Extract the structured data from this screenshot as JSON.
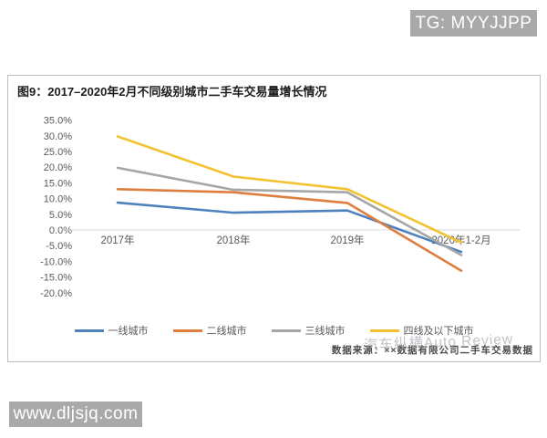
{
  "overlays": {
    "telegram_badge": "TG: MYYJJPP",
    "site_badge": "www.dljsjq.com",
    "watermark": "汽车纵横Auto Review"
  },
  "figure": {
    "title": "图9：2017–2020年2月不同级别城市二手车交易量增长情况",
    "source_note": "数据来源：××数据有限公司二手车交易数据"
  },
  "chart_data": {
    "type": "line",
    "title": "图9：2017–2020年2月不同级别城市二手车交易量增长情况",
    "categories": [
      "2017年",
      "2018年",
      "2019年",
      "2020年1-2月"
    ],
    "series": [
      {
        "name": "一线城市",
        "color": "#4e81bd",
        "values": [
          8.7,
          5.5,
          6.2,
          -7.0
        ]
      },
      {
        "name": "二线城市",
        "color": "#de7e3e",
        "values": [
          13.0,
          12.0,
          8.6,
          -13.0
        ]
      },
      {
        "name": "三线城市",
        "color": "#a6a6a6",
        "values": [
          19.8,
          12.8,
          12.0,
          -8.0
        ]
      },
      {
        "name": "四线及以下城市",
        "color": "#f2c230",
        "values": [
          29.8,
          17.0,
          13.0,
          -4.0
        ]
      }
    ],
    "ylim": [
      -20,
      35
    ],
    "ytick_step": 5,
    "ytick_format": "0.0%",
    "grid": "zero-line-only",
    "legend_position": "bottom",
    "x_labels_position": "at-zero-axis"
  },
  "colors": {
    "badge_background": "#a9a9a9",
    "badge_text": "#ffffff",
    "box_border": "#b7c0c6",
    "zero_gridline": "#d9d9d9",
    "axis_text": "#595959",
    "watermark_text": "#9aa0a6"
  }
}
